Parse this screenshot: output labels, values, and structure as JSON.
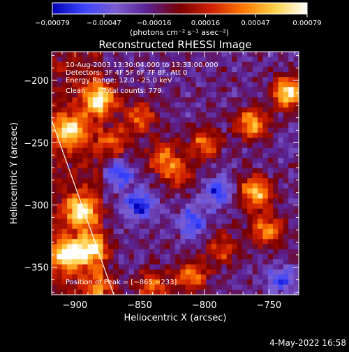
{
  "chart_data": {
    "type": "heatmap",
    "title": "Reconstructed RHESSI Image",
    "xlabel": "Heliocentric X (arcsec)",
    "ylabel": "Heliocentric Y (arcsec)",
    "xlim": [
      -918,
      -727
    ],
    "ylim": [
      -372,
      -177
    ],
    "xticks": [
      -900,
      -850,
      -800,
      -750
    ],
    "yticks": [
      -200,
      -250,
      -300,
      -350
    ],
    "xticklabels": [
      "−900",
      "−850",
      "−800",
      "−750"
    ],
    "yticklabels": [
      "−200",
      "−250",
      "−300",
      "−350"
    ],
    "colorbar": {
      "min": -0.00079,
      "max": 0.00079,
      "ticks": [
        -0.00079,
        -0.00047,
        -0.00016,
        0.00016,
        0.00047,
        0.00079
      ],
      "ticklabels": [
        "−0.00079",
        "−0.00047",
        "−0.00016",
        "0.00016",
        "0.00047",
        "0.00079"
      ],
      "unit_label": "(photons cm⁻² s⁻¹ asec⁻²)",
      "colors": [
        "#0000b4",
        "#3c46ff",
        "#7a5cd0",
        "#5a2090",
        "#7a0000",
        "#d02000",
        "#ff7800",
        "#ffd24a",
        "#ffffff"
      ]
    },
    "annotations": {
      "time_range": "10-Aug-2003 13:30:04.000 to 13:33:00.000",
      "detectors": "Detectors: 3F 4F 5F 6F 7F 8F, Att 0",
      "energy_range": "Energy Range: 12.0 - 25.0 keV",
      "method": "Clean",
      "total_counts": "Total counts: 779.",
      "peak": "Position of Peak = [−865,−233]"
    },
    "limb_line": {
      "x": [
        -918,
        -870
      ],
      "y": [
        -232,
        -372
      ]
    },
    "image_grid": {
      "nx": 48,
      "ny": 48
    },
    "bright_sources": [
      {
        "x": -880,
        "y": -215,
        "weight": 1.0
      },
      {
        "x": -905,
        "y": -240,
        "weight": 0.9
      },
      {
        "x": -895,
        "y": -305,
        "weight": 0.9
      },
      {
        "x": -905,
        "y": -340,
        "weight": 1.0
      },
      {
        "x": -885,
        "y": -335,
        "weight": 0.8
      },
      {
        "x": -850,
        "y": -230,
        "weight": 0.6
      },
      {
        "x": -832,
        "y": -262,
        "weight": 0.6
      },
      {
        "x": -800,
        "y": -250,
        "weight": 0.6
      },
      {
        "x": -820,
        "y": -275,
        "weight": 0.5
      },
      {
        "x": -763,
        "y": -235,
        "weight": 0.8
      },
      {
        "x": -735,
        "y": -210,
        "weight": 1.0
      },
      {
        "x": -760,
        "y": -290,
        "weight": 0.9
      },
      {
        "x": -752,
        "y": -320,
        "weight": 0.7
      },
      {
        "x": -785,
        "y": -335,
        "weight": 0.5
      },
      {
        "x": -840,
        "y": -365,
        "weight": 0.6
      },
      {
        "x": -810,
        "y": -357,
        "weight": 0.7
      },
      {
        "x": -880,
        "y": -367,
        "weight": 0.6
      },
      {
        "x": -870,
        "y": -250,
        "weight": 0.6
      }
    ],
    "dark_regions": [
      {
        "x": -850,
        "y": -300,
        "weight": 1.0
      },
      {
        "x": -790,
        "y": -290,
        "weight": 0.9
      },
      {
        "x": -865,
        "y": -275,
        "weight": 0.8
      },
      {
        "x": -810,
        "y": -315,
        "weight": 0.8
      },
      {
        "x": -740,
        "y": -360,
        "weight": 0.7
      }
    ]
  },
  "footer": {
    "datestamp": "4-May-2022 16:58"
  }
}
